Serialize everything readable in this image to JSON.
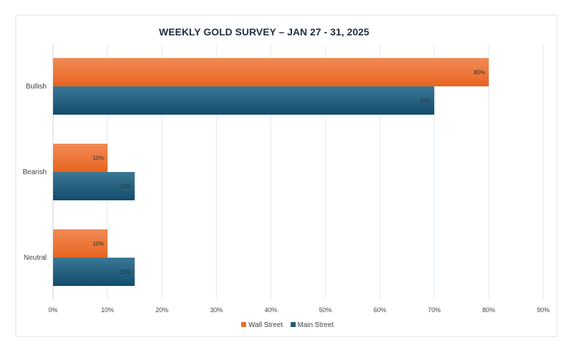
{
  "chart_data": {
    "type": "bar",
    "orientation": "horizontal",
    "title": "WEEKLY GOLD SURVEY – JAN 27 - 31, 2025",
    "xlabel": "",
    "ylabel": "",
    "categories": [
      "Bullish",
      "Bearish",
      "Neutral"
    ],
    "series": [
      {
        "name": "Wall Street",
        "values": [
          80,
          10,
          10
        ],
        "labels": [
          "80%",
          "10%",
          "10%"
        ],
        "color": "#ed6b2a"
      },
      {
        "name": "Main Street",
        "values": [
          70,
          15,
          15
        ],
        "labels": [
          "70%",
          "15%",
          "15%"
        ],
        "color": "#1d5b7a"
      }
    ],
    "xlim": [
      0,
      90
    ],
    "x_ticks": [
      0,
      10,
      20,
      30,
      40,
      50,
      60,
      70,
      80,
      90
    ],
    "x_tick_labels": [
      "0%",
      "10%",
      "20%",
      "30%",
      "40%",
      "50%",
      "60%",
      "70%",
      "80%",
      "90%"
    ],
    "grid": true,
    "legend_position": "bottom"
  }
}
